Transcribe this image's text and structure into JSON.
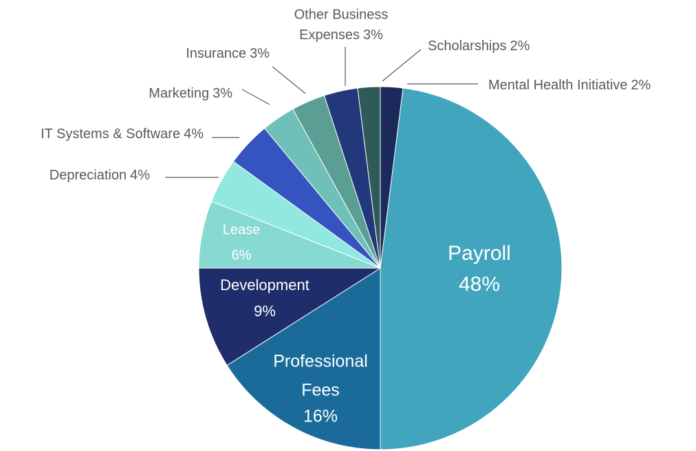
{
  "chart_data": {
    "type": "pie",
    "categories": [
      "Mental Health Initiative",
      "Payroll",
      "Professional Fees",
      "Development",
      "Lease",
      "Depreciation",
      "IT Systems & Software",
      "Marketing",
      "Insurance",
      "Other Business Expenses",
      "Scholarships"
    ],
    "values": [
      2,
      48,
      16,
      9,
      6,
      4,
      4,
      3,
      3,
      3,
      2
    ],
    "value_labels": [
      "2%",
      "48%",
      "16%",
      "9%",
      "6%",
      "4%",
      "4%",
      "3%",
      "3%",
      "3%",
      "2%"
    ],
    "colors": [
      "#1b2a5a",
      "#41a5bd",
      "#1a6b9a",
      "#1f2d6b",
      "#87d9d2",
      "#90e8e0",
      "#3554c0",
      "#6fc0b8",
      "#5a9e94",
      "#23387a",
      "#2f5a5a"
    ]
  }
}
